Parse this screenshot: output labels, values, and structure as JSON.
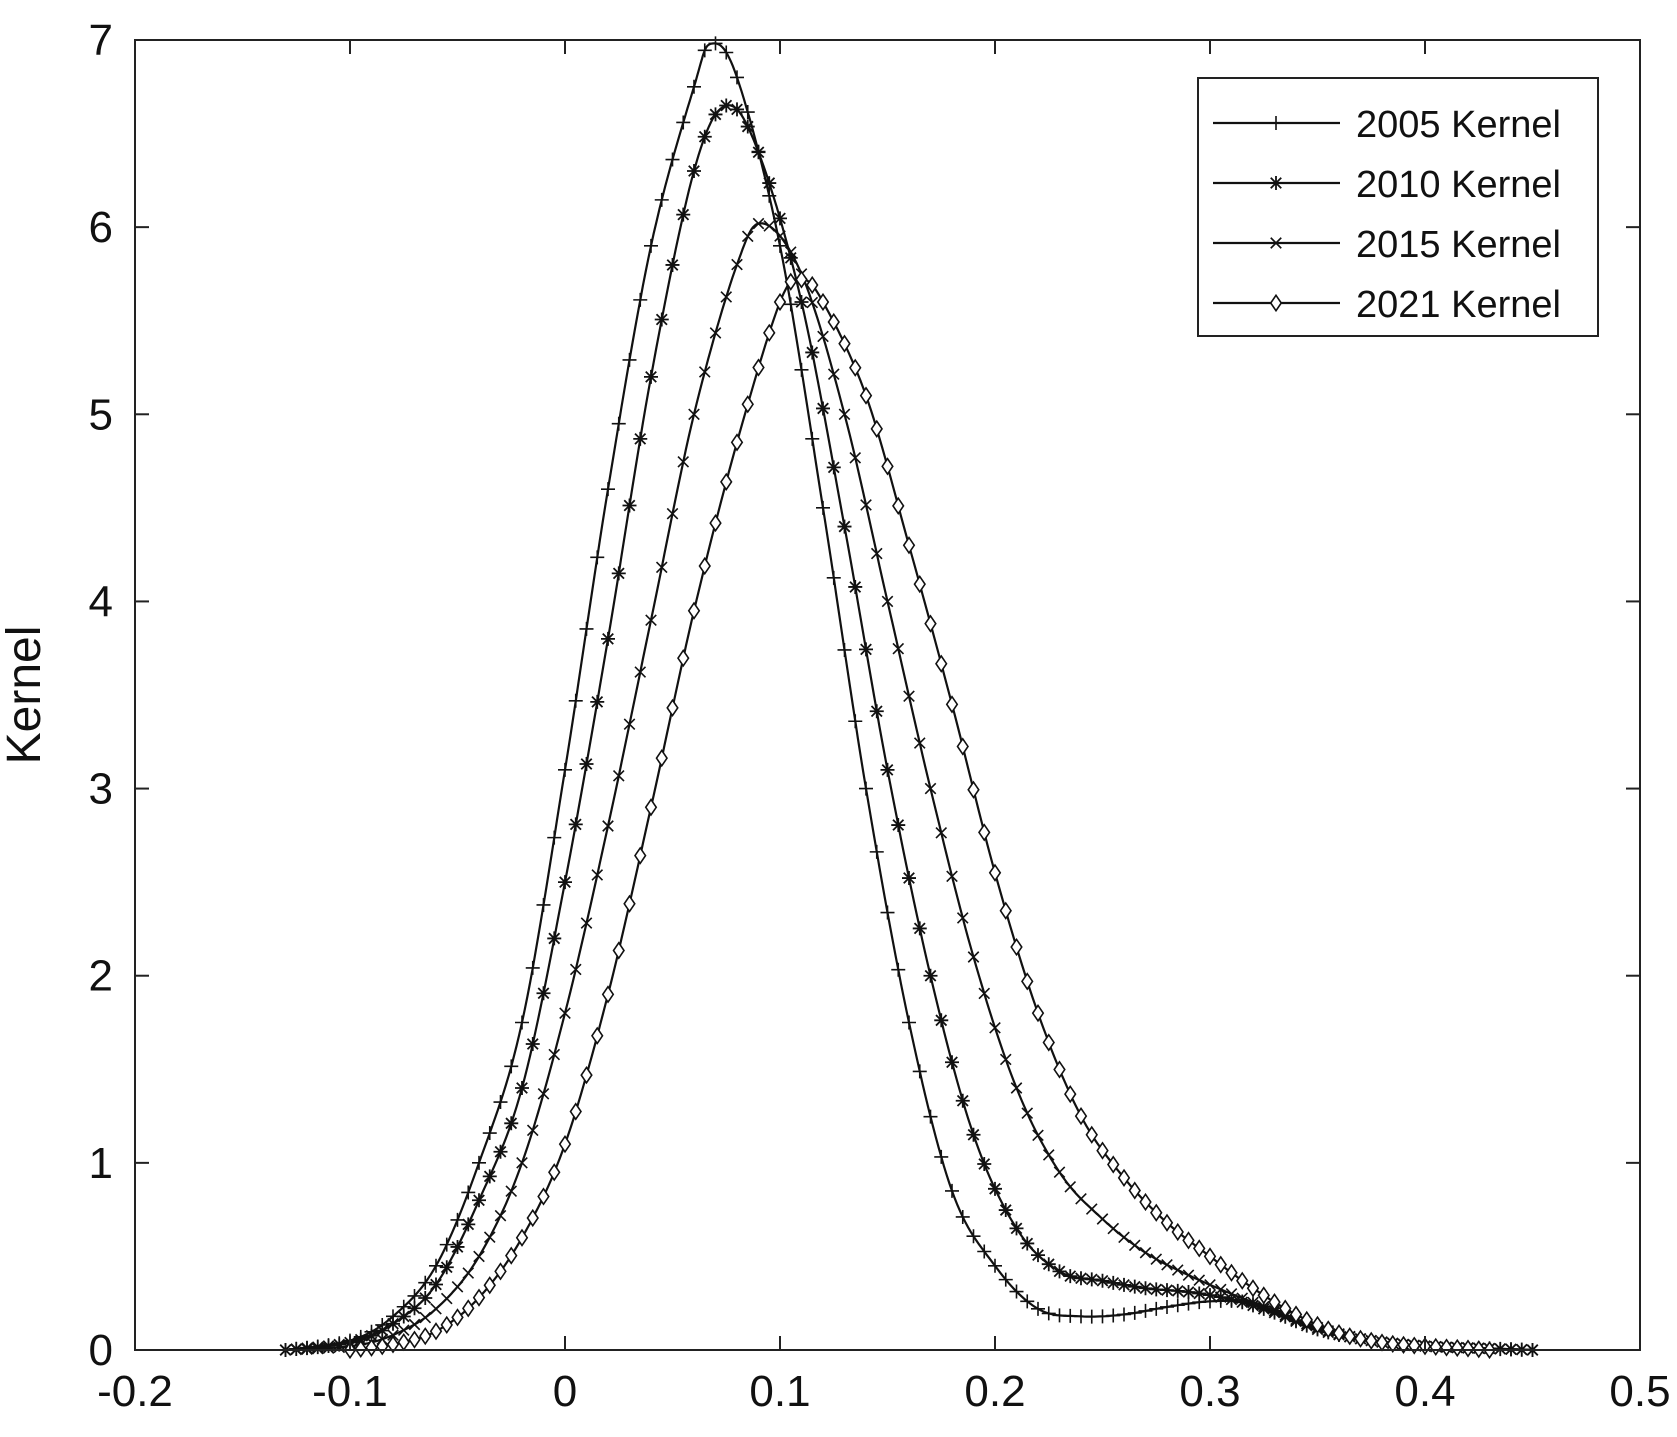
{
  "chart_data": {
    "type": "line",
    "title": "",
    "xlabel": "",
    "ylabel": "Kernel",
    "xlim": [
      -0.2,
      0.5
    ],
    "ylim": [
      0,
      7
    ],
    "xticks": [
      -0.2,
      -0.1,
      0,
      0.1,
      0.2,
      0.3,
      0.4,
      0.5
    ],
    "xtick_labels": [
      "-0.2",
      "-0.1",
      "0",
      "0.1",
      "0.2",
      "0.3",
      "0.4",
      "0.5"
    ],
    "yticks": [
      0,
      1,
      2,
      3,
      4,
      5,
      6,
      7
    ],
    "ytick_labels": [
      "0",
      "1",
      "2",
      "3",
      "4",
      "5",
      "6",
      "7"
    ],
    "grid": false,
    "legend_position": "top-right",
    "colors": {
      "line": "#111111",
      "axis": "#222222"
    },
    "series": [
      {
        "name": "2005 Kernel",
        "marker": "plus",
        "points": [
          [
            -0.13,
            0.0
          ],
          [
            -0.1,
            0.05
          ],
          [
            -0.08,
            0.18
          ],
          [
            -0.06,
            0.45
          ],
          [
            -0.04,
            1.0
          ],
          [
            -0.02,
            1.75
          ],
          [
            0.0,
            3.1
          ],
          [
            0.02,
            4.6
          ],
          [
            0.04,
            5.9
          ],
          [
            0.06,
            6.75
          ],
          [
            0.068,
            6.98
          ],
          [
            0.08,
            6.8
          ],
          [
            0.1,
            5.9
          ],
          [
            0.12,
            4.5
          ],
          [
            0.14,
            3.0
          ],
          [
            0.16,
            1.75
          ],
          [
            0.18,
            0.85
          ],
          [
            0.2,
            0.45
          ],
          [
            0.22,
            0.22
          ],
          [
            0.24,
            0.18
          ],
          [
            0.26,
            0.19
          ],
          [
            0.28,
            0.23
          ],
          [
            0.3,
            0.26
          ],
          [
            0.32,
            0.25
          ],
          [
            0.34,
            0.16
          ],
          [
            0.36,
            0.08
          ],
          [
            0.38,
            0.04
          ],
          [
            0.4,
            0.02
          ],
          [
            0.42,
            0.01
          ],
          [
            0.45,
            0.0
          ]
        ]
      },
      {
        "name": "2010 Kernel",
        "marker": "asterisk",
        "points": [
          [
            -0.13,
            0.0
          ],
          [
            -0.1,
            0.04
          ],
          [
            -0.08,
            0.14
          ],
          [
            -0.06,
            0.35
          ],
          [
            -0.04,
            0.8
          ],
          [
            -0.02,
            1.4
          ],
          [
            0.0,
            2.5
          ],
          [
            0.02,
            3.8
          ],
          [
            0.04,
            5.2
          ],
          [
            0.06,
            6.3
          ],
          [
            0.075,
            6.65
          ],
          [
            0.09,
            6.4
          ],
          [
            0.11,
            5.6
          ],
          [
            0.13,
            4.4
          ],
          [
            0.15,
            3.1
          ],
          [
            0.17,
            2.0
          ],
          [
            0.19,
            1.15
          ],
          [
            0.21,
            0.65
          ],
          [
            0.23,
            0.42
          ],
          [
            0.25,
            0.37
          ],
          [
            0.27,
            0.33
          ],
          [
            0.29,
            0.31
          ],
          [
            0.31,
            0.27
          ],
          [
            0.33,
            0.2
          ],
          [
            0.35,
            0.11
          ],
          [
            0.37,
            0.06
          ],
          [
            0.39,
            0.03
          ],
          [
            0.41,
            0.015
          ],
          [
            0.43,
            0.008
          ],
          [
            0.45,
            0.0
          ]
        ]
      },
      {
        "name": "2015 Kernel",
        "marker": "x",
        "points": [
          [
            -0.13,
            0.0
          ],
          [
            -0.1,
            0.02
          ],
          [
            -0.08,
            0.08
          ],
          [
            -0.06,
            0.22
          ],
          [
            -0.04,
            0.5
          ],
          [
            -0.02,
            1.0
          ],
          [
            0.0,
            1.8
          ],
          [
            0.02,
            2.8
          ],
          [
            0.04,
            3.9
          ],
          [
            0.06,
            5.0
          ],
          [
            0.08,
            5.8
          ],
          [
            0.092,
            6.02
          ],
          [
            0.11,
            5.75
          ],
          [
            0.13,
            5.0
          ],
          [
            0.15,
            4.0
          ],
          [
            0.17,
            3.0
          ],
          [
            0.19,
            2.1
          ],
          [
            0.21,
            1.4
          ],
          [
            0.23,
            0.95
          ],
          [
            0.25,
            0.7
          ],
          [
            0.27,
            0.52
          ],
          [
            0.29,
            0.4
          ],
          [
            0.31,
            0.3
          ],
          [
            0.33,
            0.21
          ],
          [
            0.35,
            0.12
          ],
          [
            0.37,
            0.06
          ],
          [
            0.39,
            0.03
          ],
          [
            0.41,
            0.015
          ],
          [
            0.43,
            0.008
          ],
          [
            0.45,
            0.0
          ]
        ]
      },
      {
        "name": "2021 Kernel",
        "marker": "diamond",
        "points": [
          [
            -0.1,
            0.0
          ],
          [
            -0.08,
            0.03
          ],
          [
            -0.06,
            0.1
          ],
          [
            -0.04,
            0.28
          ],
          [
            -0.02,
            0.6
          ],
          [
            0.0,
            1.1
          ],
          [
            0.02,
            1.9
          ],
          [
            0.04,
            2.9
          ],
          [
            0.06,
            3.95
          ],
          [
            0.08,
            4.85
          ],
          [
            0.1,
            5.6
          ],
          [
            0.11,
            5.72
          ],
          [
            0.12,
            5.6
          ],
          [
            0.14,
            5.1
          ],
          [
            0.16,
            4.3
          ],
          [
            0.18,
            3.45
          ],
          [
            0.2,
            2.55
          ],
          [
            0.22,
            1.8
          ],
          [
            0.24,
            1.25
          ],
          [
            0.26,
            0.92
          ],
          [
            0.28,
            0.68
          ],
          [
            0.3,
            0.5
          ],
          [
            0.32,
            0.33
          ],
          [
            0.34,
            0.19
          ],
          [
            0.36,
            0.09
          ],
          [
            0.38,
            0.04
          ],
          [
            0.4,
            0.02
          ],
          [
            0.42,
            0.008
          ],
          [
            0.43,
            0.0
          ]
        ]
      }
    ]
  }
}
